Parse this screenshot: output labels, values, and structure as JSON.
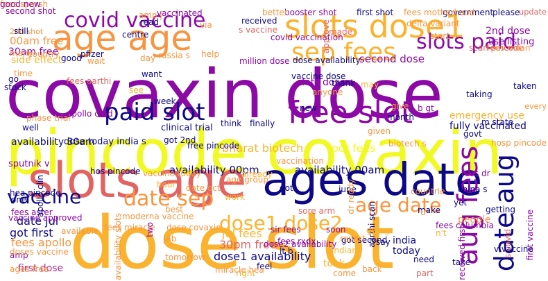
{
  "palette": {
    "deep_purple": "#8b0aa5",
    "navy": "#0d0887",
    "yellow": "#f0f921",
    "orange": "#f89540",
    "salmon": "#e16462",
    "amber": "#fbb32f",
    "magenta": "#b12a90"
  },
  "words": [
    {
      "text": "covaxin dose",
      "color": "#8b0aa5"
    },
    {
      "text": "pincode covaxin",
      "color": "#f0f921"
    },
    {
      "text": "dose slot",
      "color": "#fbb32f"
    },
    {
      "text": "slots age",
      "color": "#e16462"
    },
    {
      "text": "ages date",
      "color": "#0d0887"
    },
    {
      "text": "age age",
      "color": "#f89540"
    },
    {
      "text": "covid vaccine",
      "color": "#8b0aa5"
    },
    {
      "text": "slots dose1",
      "color": "#fbb32f"
    },
    {
      "text": "free slot",
      "color": "#8b0aa5"
    },
    {
      "text": "paid slot",
      "color": "#0d0887"
    },
    {
      "text": "sep fees",
      "color": "#fbb32f"
    },
    {
      "text": "slots paid",
      "color": "#8b0aa5"
    },
    {
      "text": "aug fees",
      "color": "#8b0aa5"
    },
    {
      "text": "date aug",
      "color": "#0d0887"
    },
    {
      "text": "vaccine",
      "color": "#0d0887"
    },
    {
      "text": "date sep",
      "color": "#f89540"
    },
    {
      "text": "age date",
      "color": "#f89540"
    },
    {
      "text": "dose1 dose2",
      "color": "#fbb32f"
    },
    {
      "text": "bharat biotech",
      "color": "#fbb32f"
    },
    {
      "text": "availability 00pm",
      "color": "#0d0887"
    },
    {
      "text": "availability 00am",
      "color": "#0d0887"
    },
    {
      "text": "dose1 availability",
      "color": "#0d0887"
    },
    {
      "text": "jul fees",
      "color": "#fbb32f"
    },
    {
      "text": "30pm free",
      "color": "#e16462"
    },
    {
      "text": "date jul",
      "color": "#0d0887"
    },
    {
      "text": "got first",
      "color": "#0d0887"
    },
    {
      "text": "fees apollo",
      "color": "#f89540"
    },
    {
      "text": "first dose",
      "color": "#b12a90"
    },
    {
      "text": "00am free",
      "color": "#f89540"
    },
    {
      "text": "30am free",
      "color": "#8b0aa5"
    },
    {
      "text": "side effect",
      "color": "#fbb32f"
    },
    {
      "text": "2nd dose",
      "color": "#8b0aa5"
    },
    {
      "text": "use listing",
      "color": "#8b0aa5"
    },
    {
      "text": "second dose",
      "color": "#8b0aa5"
    },
    {
      "text": "dose availability",
      "color": "#0d0887"
    },
    {
      "text": "slots dose",
      "color": "#8b0aa5"
    },
    {
      "text": "oct fees",
      "color": "#f0f921"
    },
    {
      "text": "emergency use",
      "color": "#fbb32f"
    },
    {
      "text": "fully vaccinated",
      "color": "#0d0887"
    },
    {
      "text": "availability 30am",
      "color": "#0d0887"
    },
    {
      "text": "sputnik v",
      "color": "#8b0aa5"
    },
    {
      "text": "dose today india s",
      "color": "#0d0887"
    },
    {
      "text": "got 2nd",
      "color": "#0d0887"
    },
    {
      "text": "clinical trial",
      "color": "#0d0887"
    },
    {
      "text": "free pincode",
      "color": "#0d0887"
    },
    {
      "text": "hos pincode",
      "color": "#0d0887"
    },
    {
      "text": "vaccine today",
      "color": "#f89540"
    },
    {
      "text": "date oct",
      "color": "#f89540"
    },
    {
      "text": "india",
      "color": "#0d0887"
    },
    {
      "text": "today",
      "color": "#0d0887"
    },
    {
      "text": "people",
      "color": "#f89540"
    },
    {
      "text": "fees rxdx",
      "color": "#8b0aa5"
    },
    {
      "text": "lt b",
      "color": "#0d0887"
    },
    {
      "text": "took",
      "color": "#fbb32f"
    },
    {
      "text": "scan pincode",
      "color": "#e16462"
    },
    {
      "text": "fees aster",
      "color": "#8b0aa5"
    },
    {
      "text": "amp",
      "color": "#8b0aa5"
    },
    {
      "text": "doses vaccine",
      "color": "#f89540"
    },
    {
      "text": "ages free",
      "color": "#f89540"
    },
    {
      "text": "sir fees",
      "color": "#8b0aa5"
    },
    {
      "text": "second shot",
      "color": "#8b0aa5"
    },
    {
      "text": "2nd shot",
      "color": "#f89540"
    },
    {
      "text": "vaccinated",
      "color": "#8b0aa5"
    },
    {
      "text": "booster shot",
      "color": "#8b0aa5"
    },
    {
      "text": "first shot",
      "color": "#0d0887"
    },
    {
      "text": "government",
      "color": "#0d0887"
    },
    {
      "text": "please",
      "color": "#0d0887"
    },
    {
      "text": "update",
      "color": "#e16462"
    },
    {
      "text": "million dose",
      "color": "#8b0aa5"
    },
    {
      "text": "vaccine dose",
      "color": "#0d0887"
    },
    {
      "text": "covid vaccination",
      "color": "#8b0aa5"
    },
    {
      "text": "received",
      "color": "#0d0887"
    },
    {
      "text": "s vaccine",
      "color": "#e16462"
    },
    {
      "text": "delta variant",
      "color": "#f89540"
    },
    {
      "text": "pfizer",
      "color": "#0d0887"
    },
    {
      "text": "day",
      "color": "#f89540"
    },
    {
      "text": "want",
      "color": "#0d0887"
    },
    {
      "text": "time",
      "color": "#f89540"
    },
    {
      "text": "go",
      "color": "#0d0887"
    },
    {
      "text": "see",
      "color": "#fbb32f"
    },
    {
      "text": "still",
      "color": "#0d0887"
    },
    {
      "text": "centre",
      "color": "#0d0887"
    },
    {
      "text": "good",
      "color": "#0d0887"
    },
    {
      "text": "many",
      "color": "#f89540"
    },
    {
      "text": "help",
      "color": "#f89540"
    },
    {
      "text": "week",
      "color": "#0d0887"
    },
    {
      "text": "month",
      "color": "#0d0887"
    },
    {
      "text": "taking",
      "color": "#0d0887"
    },
    {
      "text": "taken",
      "color": "#0d0887"
    },
    {
      "text": "anyone",
      "color": "#f89540"
    },
    {
      "text": "thank",
      "color": "#0d0887"
    },
    {
      "text": "may",
      "color": "#fbb32f"
    },
    {
      "text": "think",
      "color": "#0d0887"
    },
    {
      "text": "finally",
      "color": "#0d0887"
    },
    {
      "text": "new",
      "color": "#0d0887"
    },
    {
      "text": "give",
      "color": "#f89540"
    },
    {
      "text": "b gt",
      "color": "#8b0aa5"
    },
    {
      "text": "govt",
      "color": "#0d0887"
    },
    {
      "text": "m state",
      "color": "#0d0887"
    },
    {
      "text": "given",
      "color": "#f89540"
    },
    {
      "text": "got",
      "color": "#0d0887"
    },
    {
      "text": "june",
      "color": "#0d0887"
    },
    {
      "text": "dr reddy",
      "color": "#f89540"
    },
    {
      "text": "vaccination",
      "color": "#f89540"
    },
    {
      "text": "well",
      "color": "#0d0887"
    },
    {
      "text": "one",
      "color": "#0d0887"
    },
    {
      "text": "jab",
      "color": "#f89540"
    },
    {
      "text": "best",
      "color": "#f89540"
    },
    {
      "text": "got second",
      "color": "#0d0887"
    },
    {
      "text": "aarthi scan",
      "color": "#0d0887"
    },
    {
      "text": "make",
      "color": "#0d0887"
    },
    {
      "text": "fees dr",
      "color": "#8b0aa5"
    },
    {
      "text": "china s",
      "color": "#0d0887"
    },
    {
      "text": "getting",
      "color": "#0d0887"
    },
    {
      "text": "sore arm",
      "color": "#e16462"
    },
    {
      "text": "soon",
      "color": "#8b0aa5"
    },
    {
      "text": "report",
      "color": "#f89540"
    },
    {
      "text": "indian",
      "color": "#fbb32f"
    },
    {
      "text": "going",
      "color": "#fbb32f"
    },
    {
      "text": "say",
      "color": "#0d0887"
    },
    {
      "text": "v vaccine",
      "color": "#0d0887"
    },
    {
      "text": "feel",
      "color": "#0d0887"
    },
    {
      "text": "need",
      "color": "#0d0887"
    },
    {
      "text": "take",
      "color": "#0d0887"
    },
    {
      "text": "part",
      "color": "#e16462"
    },
    {
      "text": "right",
      "color": "#fbb32f"
    },
    {
      "text": "work",
      "color": "#fbb32f"
    },
    {
      "text": "already",
      "color": "#fbb32f"
    },
    {
      "text": "age group",
      "color": "#f89540"
    },
    {
      "text": "fees miracle",
      "color": "#f89540"
    },
    {
      "text": "dose covaxin",
      "color": "#f89540"
    },
    {
      "text": "available",
      "color": "#f89540"
    },
    {
      "text": "moderna vaccine",
      "color": "#f89540"
    },
    {
      "text": "tomorrow",
      "color": "#f89540"
    },
    {
      "text": "miracle hea",
      "color": "#f89540"
    },
    {
      "text": "amp j",
      "color": "#f89540"
    },
    {
      "text": "made",
      "color": "#e16462"
    },
    {
      "text": "fees milan",
      "color": "#f89540"
    },
    {
      "text": "fees motherhood",
      "color": "#f89540"
    },
    {
      "text": "approve",
      "color": "#e16462"
    },
    {
      "text": "better",
      "color": "#f89540"
    },
    {
      "text": "read",
      "color": "#0d0887"
    },
    {
      "text": "country",
      "color": "#f89540"
    },
    {
      "text": "stock",
      "color": "#0d0887"
    },
    {
      "text": "vaccine approved",
      "color": "#8b0aa5"
    },
    {
      "text": "hea pincode",
      "color": "#0d0887"
    },
    {
      "text": "come",
      "color": "#f89540"
    },
    {
      "text": "back",
      "color": "#f89540"
    },
    {
      "text": "countrie",
      "color": "#f89540"
    },
    {
      "text": "via",
      "color": "#f89540"
    },
    {
      "text": "hour",
      "color": "#fbb32f"
    },
    {
      "text": "yet",
      "color": "#0d0887"
    },
    {
      "text": "u",
      "color": "#f89540"
    },
    {
      "text": "n't",
      "color": "#fbb32f"
    },
    {
      "text": "fees columbia",
      "color": "#8b0aa5"
    },
    {
      "text": "s covid",
      "color": "#e16462"
    },
    {
      "text": "first vaccine",
      "color": "#8b0aa5"
    },
    {
      "text": "dose2 availability",
      "color": "#8b0aa5"
    },
    {
      "text": "availability slots",
      "color": "#f89540"
    },
    {
      "text": "two",
      "color": "#8b0aa5"
    },
    {
      "text": "apollo clin",
      "color": "#0d0887"
    },
    {
      "text": "biotech s",
      "color": "#f89540"
    },
    {
      "text": "hosp pincode",
      "color": "#f89540"
    },
    {
      "text": "received first",
      "color": "#8b0aa5"
    },
    {
      "text": "russia s",
      "color": "#f89540"
    },
    {
      "text": "phase trial",
      "color": "#f89540"
    },
    {
      "text": "apollo crad",
      "color": "#8b0aa5"
    },
    {
      "text": "every",
      "color": "#f89540"
    },
    {
      "text": "wait",
      "color": "#f89540"
    },
    {
      "text": "start",
      "color": "#f89540"
    },
    {
      "text": "fees aarthi",
      "color": "#e16462"
    },
    {
      "text": "fees sparsh",
      "color": "#f89540"
    },
    {
      "text": "good new",
      "color": "#8b0aa5"
    }
  ]
}
